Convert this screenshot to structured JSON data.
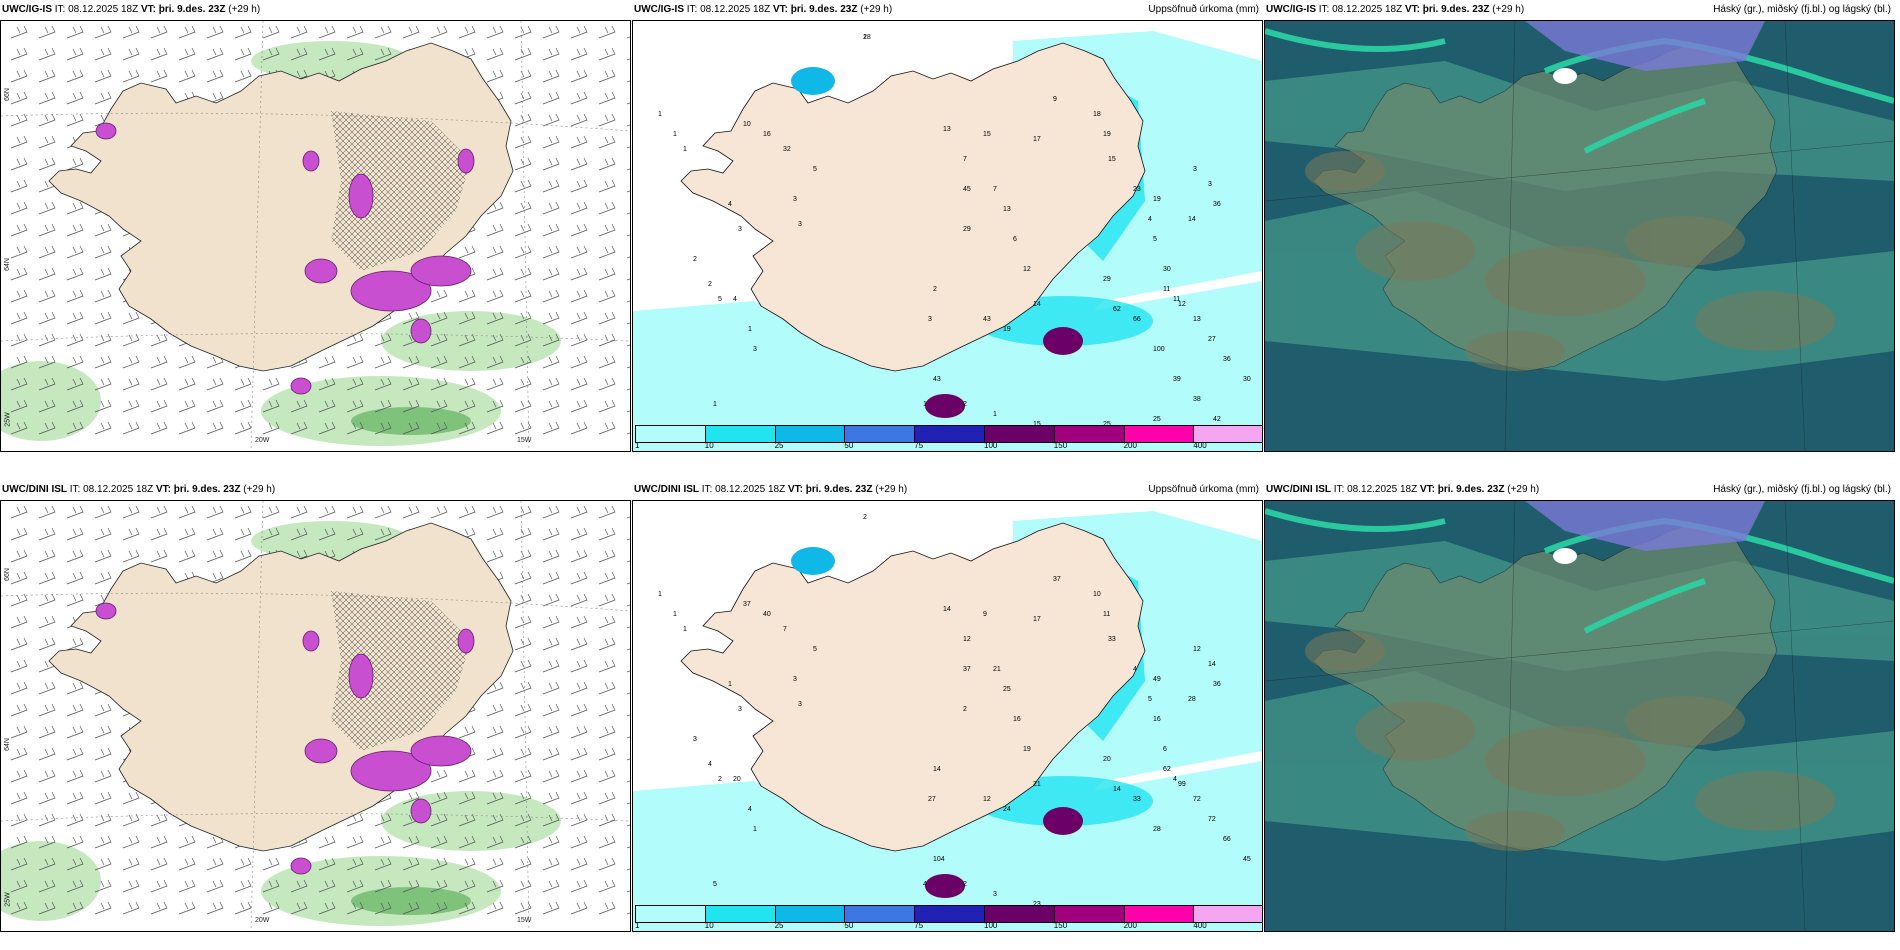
{
  "panels": [
    {
      "id": "ig-left",
      "model": "UWC/IG-IS",
      "it_label": "IT:",
      "it_value": "08.12.2025 18Z",
      "vt_label": "VT:",
      "vt_value": "þri. 9.des. 23Z",
      "lead": "(+29 h)",
      "field": ""
    },
    {
      "id": "ig-mid",
      "model": "UWC/IG-IS",
      "it_label": "IT:",
      "it_value": "08.12.2025 18Z",
      "vt_label": "VT:",
      "vt_value": "þri. 9.des. 23Z",
      "lead": "(+29 h)",
      "field": "Uppsöfnuð úrkoma (mm)"
    },
    {
      "id": "ig-right",
      "model": "UWC/IG-IS",
      "it_label": "IT:",
      "it_value": "08.12.2025 18Z",
      "vt_label": "VT:",
      "vt_value": "þri. 9.des. 23Z",
      "lead": "(+29 h)",
      "field": "Háský (gr.), miðský (fj.bl.) og lágský (bl.)"
    },
    {
      "id": "dini-left",
      "model": "UWC/DINI ISL",
      "it_label": "IT:",
      "it_value": "08.12.2025 18Z",
      "vt_label": "VT:",
      "vt_value": "þri. 9.des. 23Z",
      "lead": "(+29 h)",
      "field": ""
    },
    {
      "id": "dini-mid",
      "model": "UWC/DINI ISL",
      "it_label": "IT:",
      "it_value": "08.12.2025 18Z",
      "vt_label": "VT:",
      "vt_value": "þri. 9.des. 23Z",
      "lead": "(+29 h)",
      "field": "Uppsöfnuð úrkoma (mm)"
    },
    {
      "id": "dini-right",
      "model": "UWC/DINI ISL",
      "it_label": "IT:",
      "it_value": "08.12.2025 18Z",
      "vt_label": "VT:",
      "vt_value": "þri. 9.des. 23Z",
      "lead": "(+29 h)",
      "field": "Háský (gr.), miðský (fj.bl.) og lágský (bl.)"
    }
  ],
  "axis_labels": {
    "lon_20w": "20W",
    "lon_15w": "15W",
    "lat_66n": "66N",
    "lat_64n": "64N",
    "lat_25w": "25W"
  },
  "precip_legend": {
    "ticks": [
      "1",
      "10",
      "25",
      "50",
      "75",
      "100",
      "150",
      "200",
      "400"
    ],
    "colors": [
      "#b3fcfc",
      "#22e3f0",
      "#10b8e8",
      "#3c78e4",
      "#1f22b5",
      "#6a0068",
      "#a0007e",
      "#ff00aa",
      "#f5a6f0"
    ]
  },
  "precip_values_top": [
    "2",
    "1",
    "1",
    "1",
    "10",
    "16",
    "32",
    "5",
    "3",
    "3",
    "4",
    "3",
    "2",
    "2",
    "5",
    "4",
    "1",
    "3",
    "1",
    "1",
    "3",
    "2",
    "1",
    "3",
    "29",
    "3",
    "2",
    "14",
    "15",
    "21",
    "13",
    "15",
    "7",
    "7",
    "13",
    "6",
    "12",
    "17",
    "9",
    "18",
    "19",
    "15",
    "23",
    "4",
    "5",
    "30",
    "11",
    "3",
    "3",
    "36",
    "14",
    "19",
    "11",
    "12",
    "13",
    "27",
    "36",
    "30",
    "43",
    "45",
    "43",
    "19",
    "29",
    "62",
    "66",
    "100",
    "39",
    "38",
    "42",
    "25",
    "29",
    "25",
    "18"
  ],
  "precip_values_bottom": [
    "2",
    "1",
    "1",
    "1",
    "37",
    "40",
    "7",
    "5",
    "3",
    "3",
    "1",
    "3",
    "3",
    "4",
    "2",
    "20",
    "4",
    "1",
    "5",
    "4",
    "1",
    "2",
    "3",
    "4",
    "2",
    "27",
    "14",
    "21",
    "23",
    "22",
    "14",
    "9",
    "12",
    "21",
    "25",
    "16",
    "19",
    "17",
    "37",
    "10",
    "11",
    "33",
    "4",
    "5",
    "16",
    "6",
    "4",
    "12",
    "14",
    "36",
    "28",
    "49",
    "62",
    "99",
    "72",
    "72",
    "66",
    "45",
    "104",
    "37",
    "12",
    "24",
    "20",
    "14",
    "33",
    "28"
  ],
  "cloud_legend_note": "",
  "accent": {
    "land": "#f0e2cc",
    "precip_low": "#b3fcfc",
    "cloud_low": "#1a5f6e",
    "cloud_mid": "#3f8f86",
    "cloud_high": "#2ad4a4"
  }
}
